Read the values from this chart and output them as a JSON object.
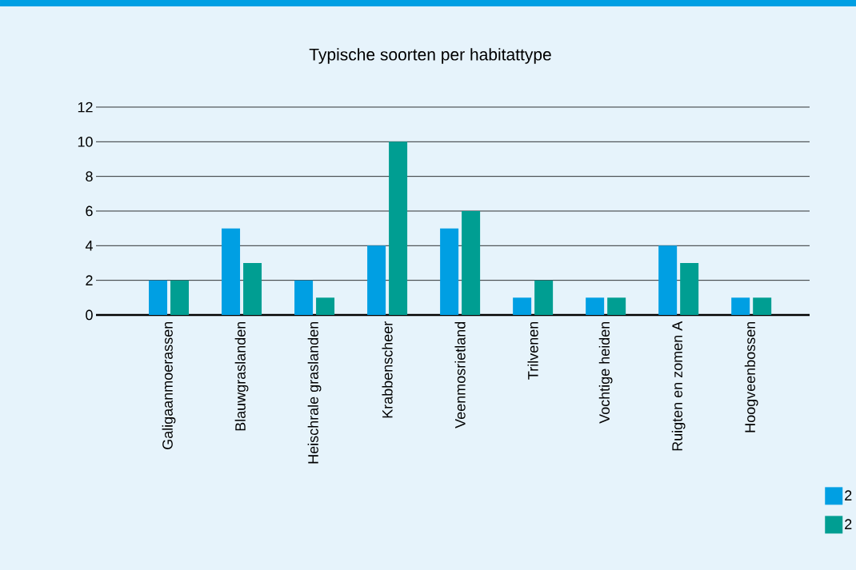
{
  "chart_data": {
    "type": "bar",
    "title": "Typische soorten per habitattype",
    "categories": [
      "Galigaanmoerassen",
      "Blauwgraslanden",
      "Heischrale graslanden",
      "Krabbenscheer",
      "Veenmosrietland",
      "Trilvenen",
      "Vochtige heiden",
      "Ruigten en zomen A",
      "Hoogveenbossen"
    ],
    "series": [
      {
        "name": "2",
        "color": "#009fe3",
        "values": [
          2,
          5,
          2,
          4,
          5,
          1,
          1,
          4,
          1
        ]
      },
      {
        "name": "2",
        "color": "#009e92",
        "values": [
          2,
          3,
          1,
          10,
          6,
          2,
          1,
          3,
          1
        ]
      }
    ],
    "ylim": [
      0,
      12
    ],
    "yticks": [
      0,
      2,
      4,
      6,
      8,
      10,
      12
    ],
    "grid": "y",
    "legend": "bottom right"
  }
}
